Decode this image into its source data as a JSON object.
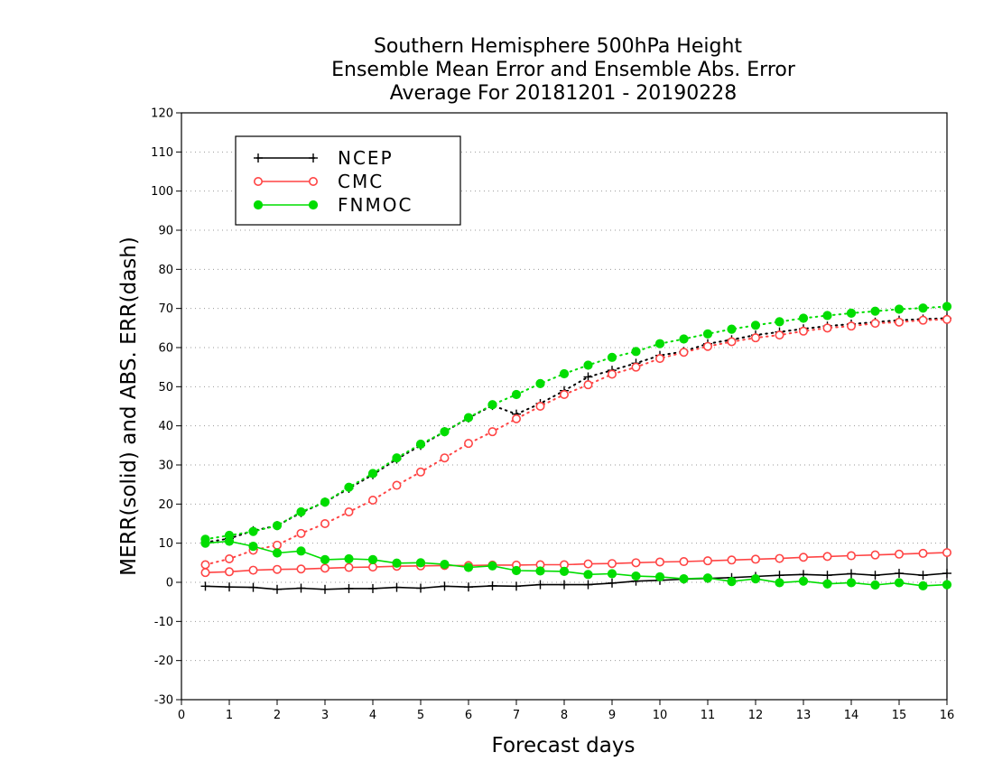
{
  "title_lines": [
    "Southern Hemisphere 500hPa Height",
    "Ensemble Mean Error and Ensemble Abs. Error",
    "Average For 20181201 - 20190228"
  ],
  "chart_data": {
    "type": "line",
    "title": "Southern Hemisphere 500hPa Height / Ensemble Mean Error and Ensemble Abs. Error / Average For 20181201 - 20190228",
    "xlabel": "Forecast days",
    "ylabel": "MERR(solid) and ABS. ERR(dash)",
    "xlim": [
      0,
      16
    ],
    "ylim": [
      -30,
      120
    ],
    "xticks": [
      0,
      1,
      2,
      3,
      4,
      5,
      6,
      7,
      8,
      9,
      10,
      11,
      12,
      13,
      14,
      15,
      16
    ],
    "yticks": [
      -30,
      -20,
      -10,
      0,
      10,
      20,
      30,
      40,
      50,
      60,
      70,
      80,
      90,
      100,
      110,
      120
    ],
    "grid": "horizontal dotted",
    "legend_position": "top-left",
    "x": [
      0.5,
      1,
      1.5,
      2,
      2.5,
      3,
      3.5,
      4,
      4.5,
      5,
      5.5,
      6,
      6.5,
      7,
      7.5,
      8,
      8.5,
      9,
      9.5,
      10,
      10.5,
      11,
      11.5,
      12,
      12.5,
      13,
      13.5,
      14,
      14.5,
      15,
      15.5,
      16
    ],
    "series": [
      {
        "name": "NCEP",
        "color": "#000000",
        "marker": "plus",
        "merr": [
          -1,
          -1.2,
          -1.3,
          -1.8,
          -1.5,
          -1.8,
          -1.6,
          -1.6,
          -1.3,
          -1.5,
          -1,
          -1.2,
          -0.9,
          -1,
          -0.6,
          -0.6,
          -0.6,
          -0.2,
          0.3,
          0.5,
          0.8,
          1,
          1.2,
          1.5,
          1.8,
          2,
          1.8,
          2.2,
          1.8,
          2.3,
          1.8,
          2.3
        ],
        "abs_err": [
          10.2,
          11.2,
          13.2,
          14.5,
          17.8,
          20.5,
          24,
          27.5,
          31.5,
          35,
          38.5,
          42,
          45.2,
          43,
          45.7,
          49,
          52.5,
          54.2,
          56,
          58,
          59,
          61,
          62,
          63.2,
          64,
          64.8,
          65.5,
          66,
          66.5,
          67,
          67.3,
          67.5
        ]
      },
      {
        "name": "CMC",
        "color": "#ff4444",
        "marker": "open-circle",
        "merr": [
          2.5,
          2.7,
          3.1,
          3.3,
          3.4,
          3.6,
          3.8,
          3.9,
          4.1,
          4.2,
          4.3,
          4.3,
          4.4,
          4.4,
          4.5,
          4.5,
          4.7,
          4.8,
          5,
          5.2,
          5.3,
          5.5,
          5.7,
          5.9,
          6.1,
          6.4,
          6.6,
          6.8,
          7,
          7.2,
          7.4,
          7.6
        ],
        "abs_err": [
          4.5,
          6,
          8.2,
          9.5,
          12.5,
          15,
          18,
          21,
          24.8,
          28.2,
          31.8,
          35.5,
          38.5,
          41.8,
          45,
          48,
          50.5,
          53.2,
          55,
          57.2,
          58.8,
          60.3,
          61.5,
          62.5,
          63.2,
          64.2,
          65,
          65.5,
          66.2,
          66.5,
          67,
          67.2
        ]
      },
      {
        "name": "FNMOC",
        "color": "#00dd00",
        "marker": "filled-circle",
        "merr": [
          10,
          10.5,
          9.2,
          7.5,
          8,
          5.8,
          6,
          5.8,
          4.9,
          5,
          4.6,
          3.8,
          4.2,
          3,
          2.9,
          2.8,
          2,
          2.2,
          1.6,
          1.4,
          0.9,
          1.1,
          0.2,
          0.9,
          -0.1,
          0.3,
          -0.4,
          -0.1,
          -0.7,
          -0.1,
          -0.9,
          -0.6
        ],
        "abs_err": [
          11,
          12,
          13,
          14.5,
          18,
          20.5,
          24.3,
          27.8,
          31.8,
          35.3,
          38.5,
          42.1,
          45.4,
          48,
          50.8,
          53.3,
          55.5,
          57.5,
          59,
          61,
          62.2,
          63.5,
          64.7,
          65.7,
          66.6,
          67.5,
          68.2,
          68.8,
          69.3,
          69.8,
          70.1,
          70.5
        ]
      }
    ]
  }
}
